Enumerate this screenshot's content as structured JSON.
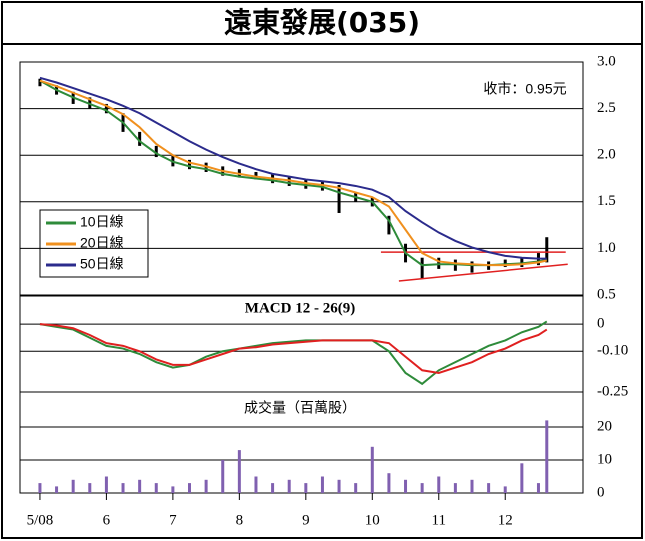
{
  "title": "遠東發展(035)",
  "chart_data": [
    {
      "type": "candlestick",
      "annotation": "收市：0.95元",
      "x": [
        5,
        5.25,
        5.5,
        5.75,
        6,
        6.25,
        6.5,
        6.75,
        7,
        7.25,
        7.5,
        7.75,
        8,
        8.25,
        8.5,
        8.75,
        9,
        9.25,
        9.5,
        9.75,
        10,
        10.25,
        10.5,
        10.75,
        11,
        11.25,
        11.5,
        11.75,
        12,
        12.25,
        12.5,
        12.625
      ],
      "high": [
        2.82,
        2.75,
        2.68,
        2.62,
        2.55,
        2.45,
        2.25,
        2.1,
        2.0,
        1.95,
        1.92,
        1.88,
        1.85,
        1.82,
        1.8,
        1.77,
        1.74,
        1.72,
        1.68,
        1.6,
        1.55,
        1.35,
        1.05,
        0.9,
        0.9,
        0.88,
        0.86,
        0.86,
        0.88,
        0.9,
        0.95,
        1.12
      ],
      "low": [
        2.74,
        2.65,
        2.55,
        2.5,
        2.45,
        2.25,
        2.1,
        1.98,
        1.88,
        1.85,
        1.82,
        1.78,
        1.76,
        1.74,
        1.7,
        1.67,
        1.64,
        1.62,
        1.38,
        1.5,
        1.45,
        1.15,
        0.85,
        0.68,
        0.78,
        0.76,
        0.74,
        0.77,
        0.8,
        0.8,
        0.82,
        0.85
      ],
      "color": "#000000",
      "series": [
        {
          "name": "10日線",
          "color": "#2e8b3a",
          "values": [
            2.8,
            2.7,
            2.62,
            2.55,
            2.48,
            2.35,
            2.15,
            2.02,
            1.93,
            1.88,
            1.85,
            1.8,
            1.77,
            1.75,
            1.73,
            1.7,
            1.68,
            1.66,
            1.6,
            1.55,
            1.5,
            1.3,
            0.95,
            0.82,
            0.83,
            0.83,
            0.82,
            0.82,
            0.83,
            0.84,
            0.86,
            0.88
          ]
        },
        {
          "name": "20日線",
          "color": "#f0901e",
          "values": [
            2.8,
            2.74,
            2.67,
            2.6,
            2.53,
            2.44,
            2.3,
            2.12,
            2.0,
            1.92,
            1.88,
            1.83,
            1.8,
            1.77,
            1.75,
            1.73,
            1.7,
            1.68,
            1.65,
            1.6,
            1.55,
            1.45,
            1.2,
            0.95,
            0.86,
            0.84,
            0.83,
            0.82,
            0.82,
            0.83,
            0.85,
            0.87
          ]
        },
        {
          "name": "50日線",
          "color": "#2b2b8c",
          "values": [
            2.83,
            2.78,
            2.72,
            2.66,
            2.6,
            2.53,
            2.45,
            2.35,
            2.25,
            2.15,
            2.06,
            1.98,
            1.91,
            1.85,
            1.8,
            1.77,
            1.74,
            1.72,
            1.7,
            1.67,
            1.63,
            1.55,
            1.4,
            1.28,
            1.17,
            1.08,
            1.01,
            0.96,
            0.92,
            0.9,
            0.89,
            0.89
          ]
        }
      ],
      "trendlines": [
        {
          "color": "#e02020",
          "x": [
            10.13,
            12.91
          ],
          "values": [
            0.96,
            0.96
          ]
        },
        {
          "color": "#e02020",
          "x": [
            10.4,
            12.94
          ],
          "values": [
            0.65,
            0.83
          ]
        }
      ],
      "xlim": [
        4.7,
        13.2
      ],
      "ylim": [
        0.5,
        3.0
      ],
      "yticks": [
        {
          "value": 3.0,
          "label": "3.0"
        },
        2.5,
        {
          "value": 2.0,
          "label": "2.0"
        },
        1.5,
        {
          "value": 1.0,
          "label": "1.0"
        },
        0.5
      ],
      "grid": true
    },
    {
      "type": "line",
      "title": "MACD 12 - 26(9)",
      "x": [
        5,
        5.25,
        5.5,
        5.75,
        6,
        6.25,
        6.5,
        6.75,
        7,
        7.25,
        7.5,
        7.75,
        8,
        8.25,
        8.5,
        8.75,
        9,
        9.25,
        9.5,
        9.75,
        10,
        10.25,
        10.5,
        10.75,
        11,
        11.25,
        11.5,
        11.75,
        12,
        12.25,
        12.5,
        12.625
      ],
      "series": [
        {
          "color": "#2e8b3a",
          "values": [
            0,
            -0.01,
            -0.02,
            -0.05,
            -0.08,
            -0.09,
            -0.11,
            -0.14,
            -0.16,
            -0.15,
            -0.12,
            -0.1,
            -0.09,
            -0.08,
            -0.07,
            -0.065,
            -0.06,
            -0.06,
            -0.06,
            -0.06,
            -0.06,
            -0.1,
            -0.18,
            -0.22,
            -0.17,
            -0.14,
            -0.11,
            -0.08,
            -0.06,
            -0.03,
            -0.01,
            0.01
          ]
        },
        {
          "color": "#e02020",
          "values": [
            0,
            -0.005,
            -0.015,
            -0.04,
            -0.07,
            -0.08,
            -0.1,
            -0.13,
            -0.15,
            -0.15,
            -0.13,
            -0.11,
            -0.09,
            -0.085,
            -0.075,
            -0.07,
            -0.065,
            -0.06,
            -0.06,
            -0.06,
            -0.06,
            -0.07,
            -0.12,
            -0.17,
            -0.18,
            -0.16,
            -0.14,
            -0.11,
            -0.09,
            -0.06,
            -0.04,
            -0.02
          ]
        }
      ],
      "xlim": [
        4.7,
        13.2
      ],
      "ylim": [
        -0.25,
        0.1
      ],
      "yticks": [
        0,
        {
          "value": -0.1,
          "label": "-0.10"
        },
        -0.25
      ],
      "grid": true
    },
    {
      "type": "bar",
      "title": "成交量（百萬股）",
      "x": [
        5,
        5.25,
        5.5,
        5.75,
        6,
        6.25,
        6.5,
        6.75,
        7,
        7.25,
        7.5,
        7.75,
        8,
        8.25,
        8.5,
        8.75,
        9,
        9.25,
        9.5,
        9.75,
        10,
        10.25,
        10.5,
        10.75,
        11,
        11.25,
        11.5,
        11.75,
        12,
        12.25,
        12.5,
        12.625
      ],
      "values": [
        3,
        2,
        4,
        3,
        5,
        3,
        4,
        3,
        2,
        3,
        4,
        10,
        13,
        5,
        3,
        4,
        3,
        5,
        4,
        3,
        14,
        6,
        4,
        3,
        5,
        3,
        4,
        3,
        2,
        9,
        3,
        22
      ],
      "color": "#8060b0",
      "xlim": [
        4.7,
        13.2
      ],
      "ylim": [
        0,
        30
      ],
      "xticks": [
        {
          "value": 5,
          "label": "5/08"
        },
        6,
        7,
        8,
        9,
        10,
        11,
        12
      ],
      "yticks": [
        0,
        10,
        20
      ],
      "grid": true
    }
  ]
}
